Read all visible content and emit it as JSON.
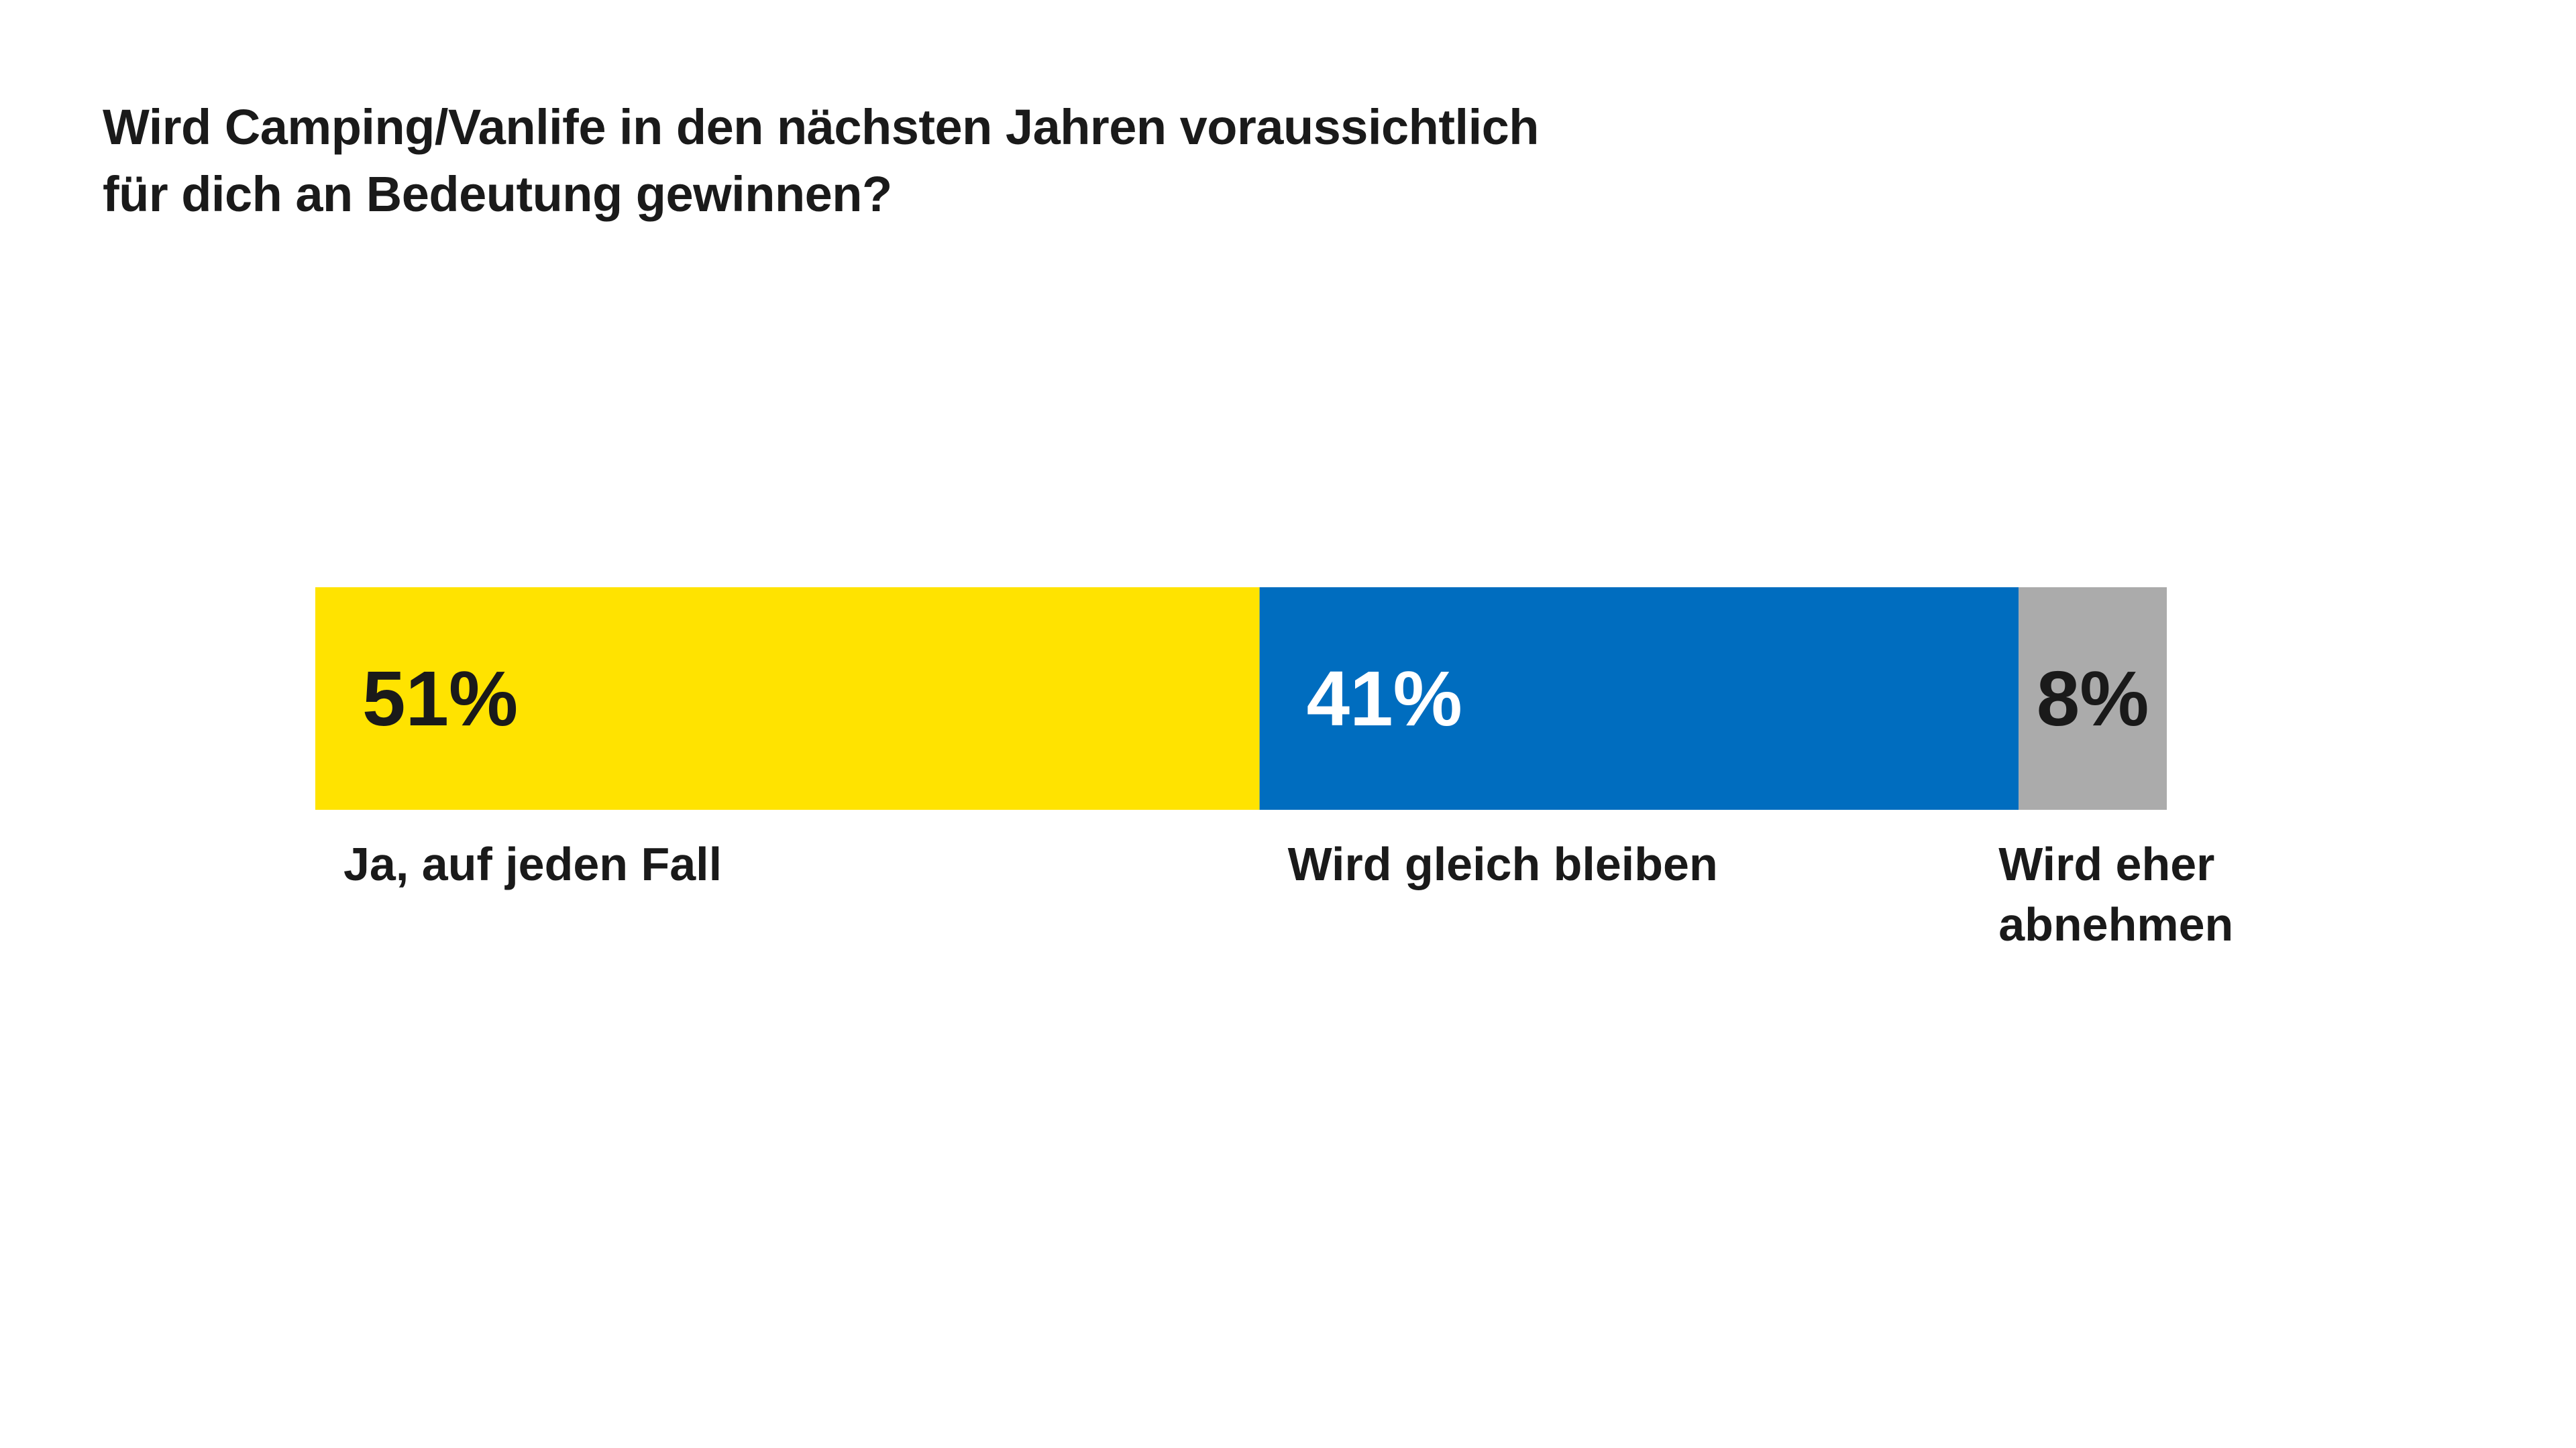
{
  "title_lines": [
    "Wird Camping/Vanlife in den nächsten Jahren voraussichtlich",
    "für dich an Bedeutung gewinnen?"
  ],
  "chart_data": {
    "type": "bar",
    "orientation": "horizontal",
    "stacked": true,
    "unit": "%",
    "total": 100,
    "segments": [
      {
        "label_lines": [
          "Ja, auf jeden Fall"
        ],
        "value": 51,
        "value_label": "51%",
        "color": "#FFE300",
        "text_color": "#1a1a1a"
      },
      {
        "label_lines": [
          "Wird gleich bleiben"
        ],
        "value": 41,
        "value_label": "41%",
        "color": "#006DBF",
        "text_color": "#ffffff"
      },
      {
        "label_lines": [
          "Wird eher",
          "abnehmen"
        ],
        "value": 8,
        "value_label": "8%",
        "color": "#ABABAB",
        "text_color": "#1a1a1a"
      }
    ],
    "grid": false,
    "legend": "none"
  }
}
